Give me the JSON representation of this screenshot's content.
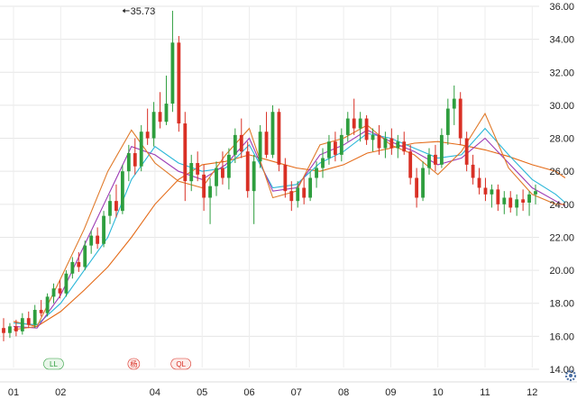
{
  "chart_data": {
    "type": "candlestick",
    "title": "",
    "xlabel": "",
    "ylabel": "",
    "ylim": [
      14,
      36
    ],
    "yticks": [
      "14.00",
      "16.00",
      "18.00",
      "20.00",
      "22.00",
      "24.00",
      "26.00",
      "28.00",
      "30.00",
      "32.00",
      "34.00",
      "36.00"
    ],
    "x_months": [
      "01",
      "02",
      "04",
      "05",
      "06",
      "07",
      "08",
      "09",
      "10",
      "11",
      "12"
    ],
    "x_month_index": [
      0,
      1,
      3,
      4,
      5,
      6,
      7,
      8,
      9,
      10,
      11
    ],
    "grid": true,
    "max_annotation": {
      "label": "35.73",
      "value": 35.73,
      "month_pos": 2.25
    },
    "up_color": "#2e9e3e",
    "down_color": "#d93025",
    "moving_averages": [
      {
        "color": "#e46a17",
        "points": [
          [
            0,
            16.9
          ],
          [
            0.5,
            16.6
          ],
          [
            1,
            17.5
          ],
          [
            1.5,
            18.8
          ],
          [
            2,
            20.2
          ],
          [
            2.5,
            22.0
          ],
          [
            3,
            24.0
          ],
          [
            3.5,
            25.5
          ],
          [
            4,
            26.4
          ],
          [
            4.5,
            26.6
          ],
          [
            5,
            27.0
          ],
          [
            5.5,
            26.6
          ],
          [
            6,
            26.2
          ],
          [
            6.5,
            26.0
          ],
          [
            7,
            26.4
          ],
          [
            7.5,
            27.1
          ],
          [
            8,
            27.4
          ],
          [
            8.5,
            27.7
          ],
          [
            9,
            27.8
          ],
          [
            9.5,
            27.6
          ],
          [
            10,
            27.3
          ],
          [
            10.5,
            26.9
          ],
          [
            11,
            26.4
          ],
          [
            11.5,
            26.0
          ],
          [
            11.7,
            25.6
          ]
        ]
      },
      {
        "color": "#2bb7d8",
        "points": [
          [
            0,
            16.8
          ],
          [
            0.5,
            16.7
          ],
          [
            1,
            18.0
          ],
          [
            1.5,
            20.0
          ],
          [
            2,
            22.0
          ],
          [
            2.5,
            25.5
          ],
          [
            3,
            27.5
          ],
          [
            3.5,
            26.5
          ],
          [
            4,
            26.0
          ],
          [
            4.5,
            26.2
          ],
          [
            5,
            27.6
          ],
          [
            5.5,
            25.0
          ],
          [
            6,
            25.2
          ],
          [
            6.5,
            26.5
          ],
          [
            7,
            27.2
          ],
          [
            7.5,
            28.3
          ],
          [
            8,
            28.0
          ],
          [
            8.5,
            27.4
          ],
          [
            9,
            26.8
          ],
          [
            9.5,
            27.0
          ],
          [
            10,
            28.6
          ],
          [
            10.5,
            27.0
          ],
          [
            11,
            25.5
          ],
          [
            11.5,
            24.6
          ],
          [
            11.7,
            24.1
          ]
        ]
      },
      {
        "color": "#9c3bb4",
        "points": [
          [
            0,
            16.6
          ],
          [
            0.5,
            16.5
          ],
          [
            1,
            18.5
          ],
          [
            1.5,
            21.5
          ],
          [
            2,
            24.5
          ],
          [
            2.5,
            27.5
          ],
          [
            3,
            27.0
          ],
          [
            3.5,
            26.0
          ],
          [
            4,
            25.5
          ],
          [
            4.5,
            26.4
          ],
          [
            5,
            28.0
          ],
          [
            5.5,
            24.8
          ],
          [
            6,
            25.0
          ],
          [
            6.5,
            27.0
          ],
          [
            7,
            27.6
          ],
          [
            7.5,
            28.5
          ],
          [
            8,
            27.8
          ],
          [
            8.5,
            27.2
          ],
          [
            9,
            26.4
          ],
          [
            9.5,
            26.8
          ],
          [
            10,
            28.0
          ],
          [
            10.5,
            26.5
          ],
          [
            11,
            25.0
          ],
          [
            11.5,
            24.2
          ],
          [
            11.7,
            23.9
          ]
        ]
      },
      {
        "color": "#e07a2a",
        "points": [
          [
            0,
            16.4
          ],
          [
            0.5,
            16.6
          ],
          [
            1,
            19.5
          ],
          [
            1.5,
            22.5
          ],
          [
            2,
            26.0
          ],
          [
            2.5,
            28.5
          ],
          [
            3,
            26.5
          ],
          [
            3.5,
            25.4
          ],
          [
            4,
            25.0
          ],
          [
            4.5,
            27.0
          ],
          [
            5,
            28.6
          ],
          [
            5.5,
            24.4
          ],
          [
            6,
            24.8
          ],
          [
            6.5,
            27.6
          ],
          [
            7,
            28.0
          ],
          [
            7.5,
            28.8
          ],
          [
            8,
            27.6
          ],
          [
            8.5,
            27.0
          ],
          [
            9,
            25.8
          ],
          [
            9.5,
            27.2
          ],
          [
            10,
            29.5
          ],
          [
            10.5,
            26.2
          ],
          [
            11,
            24.6
          ],
          [
            11.5,
            24.0
          ],
          [
            11.7,
            24.0
          ]
        ]
      }
    ],
    "candles": [
      {
        "o": 16.5,
        "h": 17.1,
        "l": 15.7,
        "c": 16.2
      },
      {
        "o": 16.2,
        "h": 16.8,
        "l": 15.9,
        "c": 16.6
      },
      {
        "o": 16.6,
        "h": 17.0,
        "l": 16.0,
        "c": 16.3
      },
      {
        "o": 16.3,
        "h": 17.4,
        "l": 16.1,
        "c": 17.1
      },
      {
        "o": 17.1,
        "h": 17.5,
        "l": 16.5,
        "c": 16.7
      },
      {
        "o": 16.7,
        "h": 17.9,
        "l": 16.5,
        "c": 17.6
      },
      {
        "o": 17.6,
        "h": 18.2,
        "l": 17.2,
        "c": 17.4
      },
      {
        "o": 17.4,
        "h": 18.6,
        "l": 17.2,
        "c": 18.4
      },
      {
        "o": 18.4,
        "h": 19.2,
        "l": 18.0,
        "c": 18.9
      },
      {
        "o": 18.9,
        "h": 19.4,
        "l": 18.3,
        "c": 18.6
      },
      {
        "o": 18.6,
        "h": 20.0,
        "l": 18.4,
        "c": 19.8
      },
      {
        "o": 19.8,
        "h": 20.8,
        "l": 19.5,
        "c": 20.5
      },
      {
        "o": 20.5,
        "h": 21.1,
        "l": 19.9,
        "c": 20.2
      },
      {
        "o": 20.2,
        "h": 21.8,
        "l": 20.0,
        "c": 21.5
      },
      {
        "o": 21.5,
        "h": 22.4,
        "l": 21.0,
        "c": 22.1
      },
      {
        "o": 22.1,
        "h": 22.6,
        "l": 21.3,
        "c": 21.6
      },
      {
        "o": 21.6,
        "h": 23.6,
        "l": 21.4,
        "c": 23.3
      },
      {
        "o": 23.3,
        "h": 24.6,
        "l": 22.8,
        "c": 24.2
      },
      {
        "o": 24.2,
        "h": 25.2,
        "l": 23.2,
        "c": 23.6
      },
      {
        "o": 23.6,
        "h": 26.4,
        "l": 23.4,
        "c": 26.0
      },
      {
        "o": 26.0,
        "h": 27.6,
        "l": 25.4,
        "c": 27.1
      },
      {
        "o": 27.1,
        "h": 28.0,
        "l": 25.8,
        "c": 26.3
      },
      {
        "o": 26.3,
        "h": 28.8,
        "l": 26.0,
        "c": 28.4
      },
      {
        "o": 28.4,
        "h": 29.8,
        "l": 27.6,
        "c": 28.0
      },
      {
        "o": 28.0,
        "h": 30.2,
        "l": 27.5,
        "c": 29.6
      },
      {
        "o": 29.6,
        "h": 30.8,
        "l": 28.6,
        "c": 29.0
      },
      {
        "o": 29.0,
        "h": 31.8,
        "l": 28.8,
        "c": 30.1
      },
      {
        "o": 30.1,
        "h": 35.73,
        "l": 29.6,
        "c": 33.8
      },
      {
        "o": 33.8,
        "h": 34.2,
        "l": 28.4,
        "c": 28.9
      },
      {
        "o": 28.9,
        "h": 29.6,
        "l": 24.2,
        "c": 25.4
      },
      {
        "o": 25.4,
        "h": 27.0,
        "l": 24.8,
        "c": 26.5
      },
      {
        "o": 26.5,
        "h": 27.2,
        "l": 25.4,
        "c": 25.8
      },
      {
        "o": 25.8,
        "h": 26.4,
        "l": 23.6,
        "c": 24.4
      },
      {
        "o": 24.4,
        "h": 25.6,
        "l": 22.8,
        "c": 25.1
      },
      {
        "o": 25.1,
        "h": 26.6,
        "l": 24.5,
        "c": 26.2
      },
      {
        "o": 26.2,
        "h": 27.2,
        "l": 25.2,
        "c": 25.6
      },
      {
        "o": 25.6,
        "h": 27.4,
        "l": 24.9,
        "c": 27.0
      },
      {
        "o": 27.0,
        "h": 28.6,
        "l": 26.5,
        "c": 28.2
      },
      {
        "o": 28.2,
        "h": 29.2,
        "l": 26.8,
        "c": 27.2
      },
      {
        "o": 27.2,
        "h": 27.8,
        "l": 24.4,
        "c": 24.8
      },
      {
        "o": 24.8,
        "h": 27.0,
        "l": 22.8,
        "c": 26.6
      },
      {
        "o": 26.6,
        "h": 28.8,
        "l": 26.2,
        "c": 28.4
      },
      {
        "o": 28.4,
        "h": 29.6,
        "l": 26.8,
        "c": 27.0
      },
      {
        "o": 27.0,
        "h": 30.0,
        "l": 26.8,
        "c": 29.6
      },
      {
        "o": 29.6,
        "h": 29.8,
        "l": 26.0,
        "c": 26.4
      },
      {
        "o": 26.4,
        "h": 26.8,
        "l": 24.4,
        "c": 24.8
      },
      {
        "o": 24.8,
        "h": 25.4,
        "l": 23.6,
        "c": 24.2
      },
      {
        "o": 24.2,
        "h": 25.4,
        "l": 23.8,
        "c": 25.0
      },
      {
        "o": 25.0,
        "h": 25.6,
        "l": 24.0,
        "c": 24.4
      },
      {
        "o": 24.4,
        "h": 26.0,
        "l": 24.2,
        "c": 25.6
      },
      {
        "o": 25.6,
        "h": 26.6,
        "l": 25.0,
        "c": 26.2
      },
      {
        "o": 26.2,
        "h": 27.4,
        "l": 25.6,
        "c": 26.8
      },
      {
        "o": 26.8,
        "h": 28.2,
        "l": 26.4,
        "c": 27.8
      },
      {
        "o": 27.8,
        "h": 28.4,
        "l": 26.6,
        "c": 27.0
      },
      {
        "o": 27.0,
        "h": 28.6,
        "l": 26.6,
        "c": 28.2
      },
      {
        "o": 28.2,
        "h": 29.6,
        "l": 27.8,
        "c": 29.2
      },
      {
        "o": 29.2,
        "h": 30.4,
        "l": 28.2,
        "c": 28.6
      },
      {
        "o": 28.6,
        "h": 29.6,
        "l": 27.8,
        "c": 29.2
      },
      {
        "o": 29.2,
        "h": 29.4,
        "l": 27.6,
        "c": 27.9
      },
      {
        "o": 27.9,
        "h": 28.6,
        "l": 27.2,
        "c": 28.2
      },
      {
        "o": 28.2,
        "h": 28.8,
        "l": 27.0,
        "c": 27.4
      },
      {
        "o": 27.4,
        "h": 28.4,
        "l": 26.8,
        "c": 28.0
      },
      {
        "o": 28.0,
        "h": 28.6,
        "l": 27.0,
        "c": 27.4
      },
      {
        "o": 27.4,
        "h": 28.2,
        "l": 26.8,
        "c": 27.8
      },
      {
        "o": 27.8,
        "h": 28.4,
        "l": 27.0,
        "c": 27.2
      },
      {
        "o": 27.2,
        "h": 27.6,
        "l": 25.2,
        "c": 25.6
      },
      {
        "o": 25.6,
        "h": 26.2,
        "l": 23.8,
        "c": 24.4
      },
      {
        "o": 24.4,
        "h": 26.6,
        "l": 24.2,
        "c": 26.2
      },
      {
        "o": 26.2,
        "h": 27.4,
        "l": 25.8,
        "c": 27.0
      },
      {
        "o": 27.0,
        "h": 27.6,
        "l": 26.0,
        "c": 26.4
      },
      {
        "o": 26.4,
        "h": 28.6,
        "l": 26.2,
        "c": 28.2
      },
      {
        "o": 28.2,
        "h": 30.4,
        "l": 27.6,
        "c": 29.8
      },
      {
        "o": 29.8,
        "h": 31.2,
        "l": 28.8,
        "c": 30.4
      },
      {
        "o": 30.4,
        "h": 30.8,
        "l": 27.6,
        "c": 28.0
      },
      {
        "o": 28.0,
        "h": 28.4,
        "l": 26.0,
        "c": 26.4
      },
      {
        "o": 26.4,
        "h": 27.0,
        "l": 25.2,
        "c": 25.6
      },
      {
        "o": 25.6,
        "h": 26.2,
        "l": 24.6,
        "c": 25.0
      },
      {
        "o": 25.0,
        "h": 25.6,
        "l": 24.2,
        "c": 24.6
      },
      {
        "o": 24.6,
        "h": 25.2,
        "l": 23.8,
        "c": 24.9
      },
      {
        "o": 24.9,
        "h": 25.2,
        "l": 23.6,
        "c": 24.0
      },
      {
        "o": 24.0,
        "h": 24.8,
        "l": 23.4,
        "c": 24.4
      },
      {
        "o": 24.4,
        "h": 24.8,
        "l": 23.5,
        "c": 23.8
      },
      {
        "o": 23.8,
        "h": 24.6,
        "l": 23.3,
        "c": 24.3
      },
      {
        "o": 24.3,
        "h": 24.9,
        "l": 23.6,
        "c": 24.1
      },
      {
        "o": 24.1,
        "h": 24.8,
        "l": 23.3,
        "c": 24.6
      },
      {
        "o": 24.6,
        "h": 25.2,
        "l": 24.0,
        "c": 24.8
      }
    ]
  },
  "markers": [
    {
      "text": "LL",
      "month_pos": 0.85,
      "bg": "#e9f6ea",
      "color": "#2e9e3e"
    },
    {
      "text": "杨",
      "month_pos": 2.55,
      "bg": "#fdecea",
      "color": "#d93025"
    },
    {
      "text": "QL",
      "month_pos": 3.55,
      "bg": "#fdecea",
      "color": "#d93025"
    }
  ],
  "settings_icon": "gear-icon"
}
